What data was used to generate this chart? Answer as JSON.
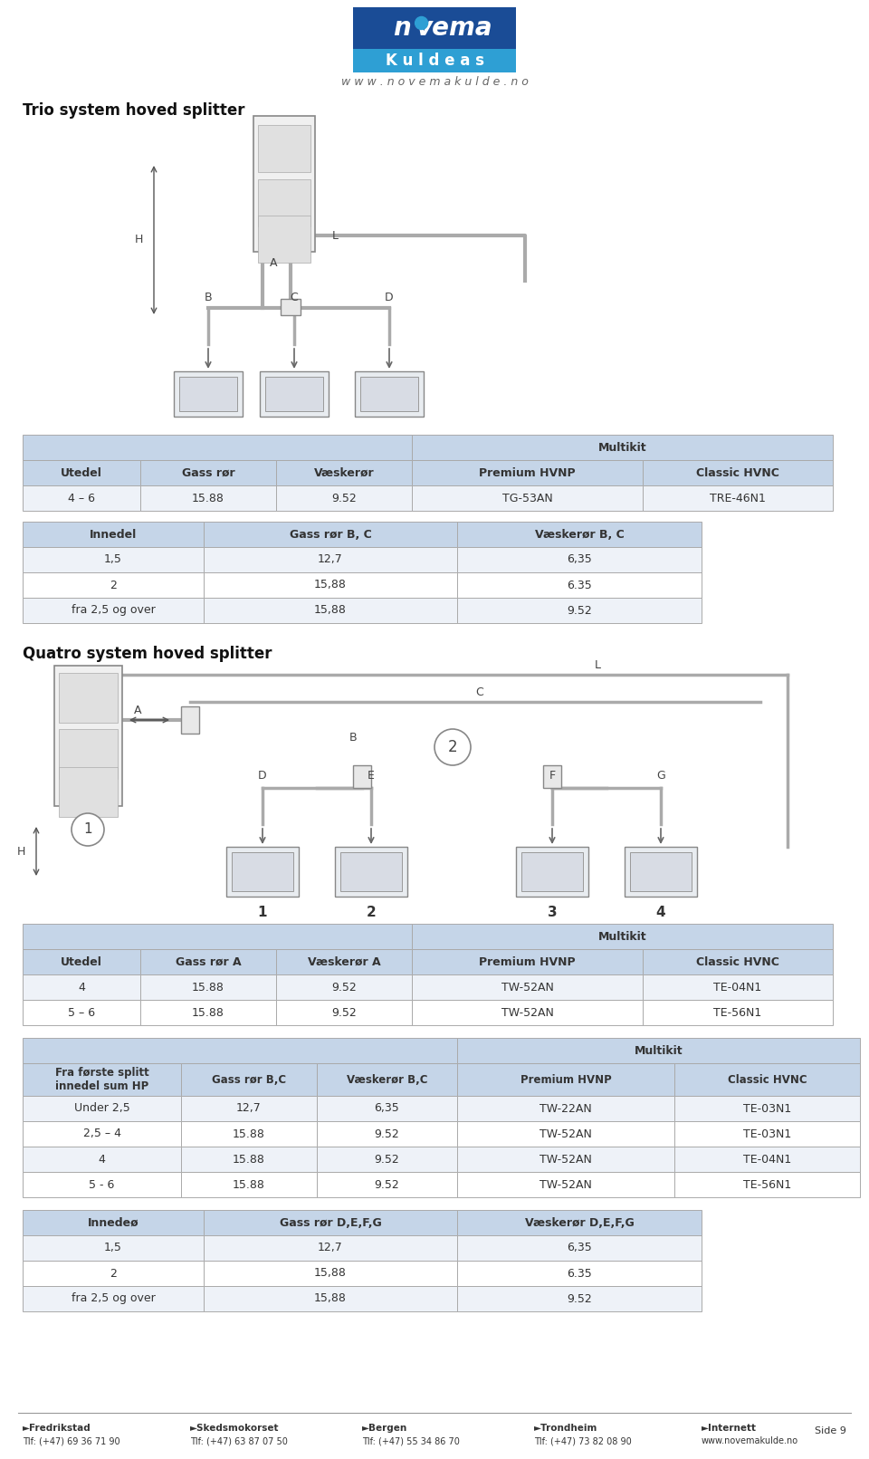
{
  "page_bg": "#ffffff",
  "website": "w w w . n o v e m a k u l d e . n o",
  "section1_title": "Trio system hoved splitter",
  "section2_title": "Quatro system hoved splitter",
  "table_header_bg": "#c5d5e8",
  "table_row_bg1": "#ffffff",
  "table_row_bg2": "#eef2f8",
  "table1_sub_header": [
    "Utedel",
    "Gass rør",
    "Væskerør",
    "Premium HVNP",
    "Classic HVNC"
  ],
  "table1_row1": [
    "4 – 6",
    "15.88",
    "9.52",
    "TG-53AN",
    "TRE-46N1"
  ],
  "table2_col1": "Innedel",
  "table2_col2": "Gass rør B, C",
  "table2_col3": "Væskerør B, C",
  "table2_rows": [
    [
      "1,5",
      "12,7",
      "6,35"
    ],
    [
      "2",
      "15,88",
      "6.35"
    ],
    [
      "fra 2,5 og over",
      "15,88",
      "9.52"
    ]
  ],
  "table3_sub_header": [
    "Utedel",
    "Gass rør A",
    "Væskerør A",
    "Premium HVNP",
    "Classic HVNC"
  ],
  "table3_rows": [
    [
      "4",
      "15.88",
      "9.52",
      "TW-52AN",
      "TE-04N1"
    ],
    [
      "5 – 6",
      "15.88",
      "9.52",
      "TW-52AN",
      "TE-56N1"
    ]
  ],
  "table4_header": [
    "Fra første splitt\ninnedel sum HP",
    "Gass rør B,C",
    "Væskerør B,C",
    "Premium HVNP",
    "Classic HVNC"
  ],
  "table4_rows": [
    [
      "Under 2,5",
      "12,7",
      "6,35",
      "TW-22AN",
      "TE-03N1"
    ],
    [
      "2,5 – 4",
      "15.88",
      "9.52",
      "TW-52AN",
      "TE-03N1"
    ],
    [
      "4",
      "15.88",
      "9.52",
      "TW-52AN",
      "TE-04N1"
    ],
    [
      "5 - 6",
      "15.88",
      "9.52",
      "TW-52AN",
      "TE-56N1"
    ]
  ],
  "table5_col1": "Innedeø",
  "table5_col2": "Gass rør D,E,F,G",
  "table5_col3": "Væskerør D,E,F,G",
  "table5_rows": [
    [
      "1,5",
      "12,7",
      "6,35"
    ],
    [
      "2",
      "15,88",
      "6.35"
    ],
    [
      "fra 2,5 og over",
      "15,88",
      "9.52"
    ]
  ],
  "footer_locations": [
    [
      "►Fredrikstad",
      "Tlf: (+47) 69 36 71 90"
    ],
    [
      "►Skedsmokorset",
      "Tlf: (+47) 63 87 07 50"
    ],
    [
      "►Bergen",
      "Tlf: (+47) 55 34 86 70"
    ],
    [
      "►Trondheim",
      "Tlf: (+47) 73 82 08 90"
    ],
    [
      "►Internett",
      "www.novemakulde.no"
    ]
  ],
  "footer_page": "Side 9"
}
